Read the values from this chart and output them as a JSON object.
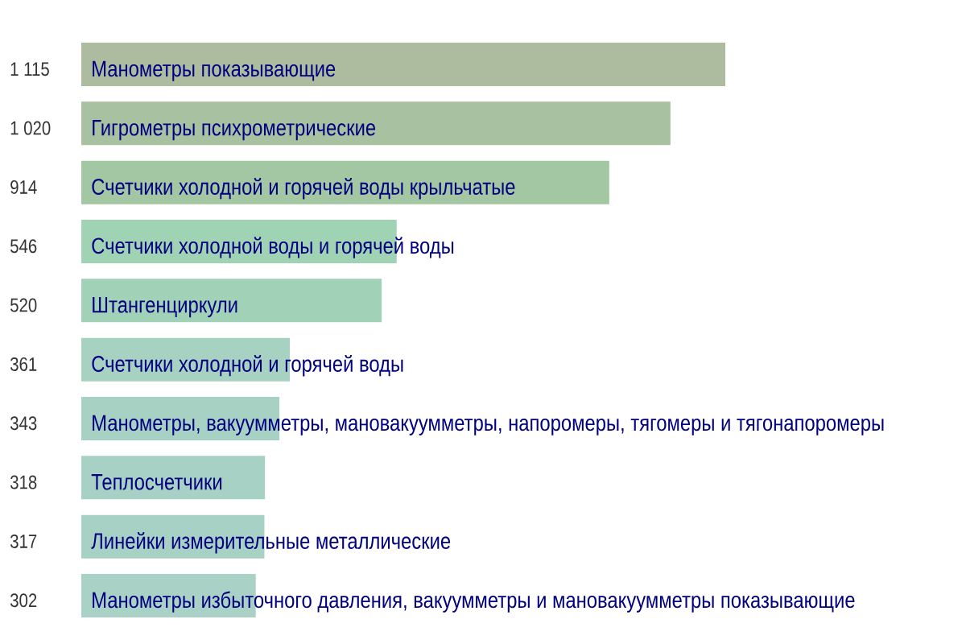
{
  "chart_data": {
    "type": "bar",
    "orientation": "horizontal",
    "categories": [
      "Манометры показывающие",
      "Гигрометры психрометрические",
      "Счетчики холодной и горячей воды крыльчатые",
      "Счетчики холодной воды и горячей воды",
      "Штангенциркули",
      "Счетчики холодной и горячей воды",
      "Манометры, вакуумметры, мановакуумметры, напоромеры, тягомеры и тягонапоромеры",
      "Теплосчетчики",
      "Линейки измерительные металлические",
      "Манометры избыточного давления, вакуумметры и мановакуумметры показывающие"
    ],
    "values": [
      1115,
      1020,
      914,
      546,
      520,
      361,
      343,
      318,
      317,
      302
    ],
    "value_labels": [
      "1 115",
      "1 020",
      "914",
      "546",
      "520",
      "361",
      "343",
      "318",
      "317",
      "302"
    ],
    "colors": [
      "#adbb9f",
      "#a8c1a1",
      "#a3c6a3",
      "#a0d2b4",
      "#a1d1b6",
      "#a7d1c1",
      "#a7d1c3",
      "#a8d1c5",
      "#a8d1c5",
      "#a9d1c6"
    ]
  }
}
